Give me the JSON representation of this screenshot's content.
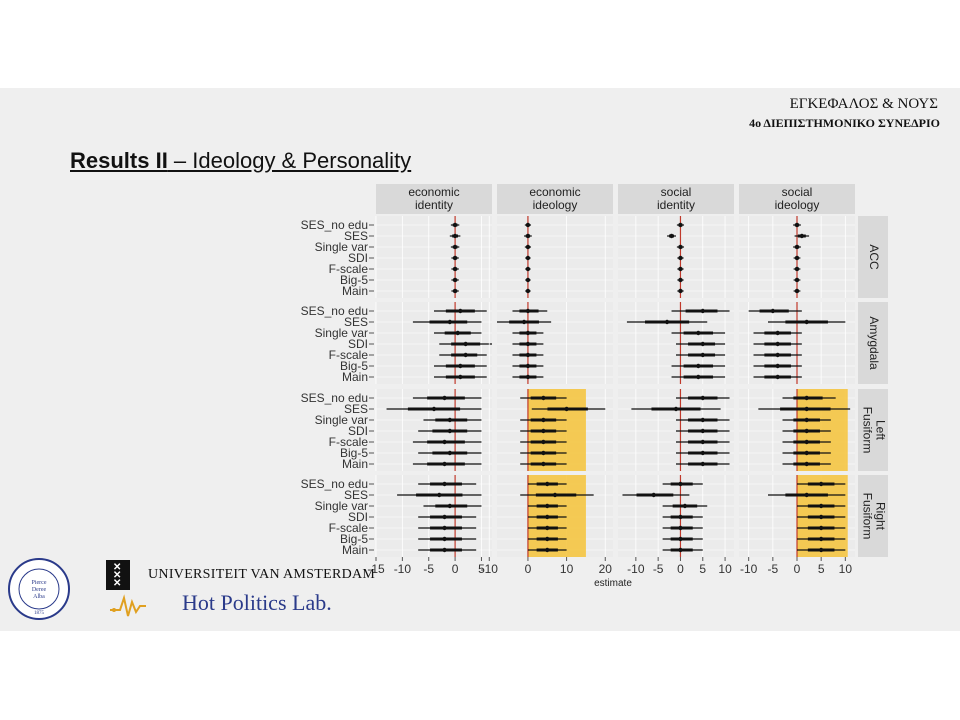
{
  "slide": {
    "conf_title": "ΕΓΚΕΦΑΛΟΣ & ΝΟΥΣ",
    "conf_subtitle": "4ο ΔΙΕΠΙΣΤΗΜΟΝΙΚΟ ΣΥΝΕΔΡΙΟ",
    "title_bold": "Results II",
    "title_rest": " – Ideology & Personality",
    "logos": {
      "uva": "UNIVERSITEIT VAN AMSTERDAM",
      "hpl": "Hot Politics Lab.",
      "seal_text": "THE AMERICAN COLLEGE OF GREECE",
      "seal_inner": [
        "Pierce",
        "Deree",
        "Alba"
      ],
      "seal_year": "1875"
    }
  },
  "colors": {
    "highlight": "#f5c542",
    "zero_line": "#c0392b",
    "panel_bg": "#ebebeb",
    "strip_bg": "#d9d9d9",
    "point": "#111111"
  },
  "chart_data": {
    "type": "forest",
    "xlabel": "estimate",
    "columns": [
      "economic\nidentity",
      "economic\nideology",
      "social\nidentity",
      "social\nideology"
    ],
    "rows": [
      "ACC",
      "Amygdala",
      "Fusiform\nLeft",
      "Fusiform\nRight"
    ],
    "models": [
      "SES_no edu",
      "SES",
      "Single var",
      "SDI",
      "F-scale",
      "Big-5",
      "Main"
    ],
    "column_xlim": [
      [
        -15,
        7
      ],
      [
        -8,
        22
      ],
      [
        -14,
        12
      ],
      [
        -12,
        12
      ]
    ],
    "column_ticks": [
      [
        -15,
        -10,
        -5,
        0,
        5
      ],
      [
        -10,
        0,
        10,
        20
      ],
      [
        -10,
        -5,
        0,
        5,
        10
      ],
      [
        -10,
        -5,
        0,
        5,
        10
      ]
    ],
    "highlight_cells": [
      [
        2,
        1
      ],
      [
        3,
        1
      ],
      [
        2,
        3
      ],
      [
        3,
        3
      ]
    ],
    "cells": [
      [
        [
          [
            0,
            -0.8,
            0.8
          ],
          [
            0,
            -1,
            1
          ],
          [
            0,
            -0.8,
            0.8
          ],
          [
            0,
            -0.7,
            0.7
          ],
          [
            0,
            -0.7,
            0.7
          ],
          [
            0,
            -0.7,
            0.7
          ],
          [
            0,
            -0.7,
            0.7
          ]
        ],
        [
          [
            0,
            -0.8,
            0.8
          ],
          [
            0,
            -1,
            1
          ],
          [
            0,
            -0.8,
            0.8
          ],
          [
            0,
            -0.7,
            0.7
          ],
          [
            0,
            -0.7,
            0.7
          ],
          [
            0,
            -0.7,
            0.7
          ],
          [
            0,
            -0.7,
            0.7
          ]
        ],
        [
          [
            0,
            -0.8,
            0.8
          ],
          [
            -2,
            -3,
            -1
          ],
          [
            0,
            -0.8,
            0.8
          ],
          [
            0,
            -0.7,
            0.7
          ],
          [
            0,
            -0.7,
            0.7
          ],
          [
            0,
            -0.7,
            0.7
          ],
          [
            0,
            -0.7,
            0.7
          ]
        ],
        [
          [
            0,
            -0.8,
            0.8
          ],
          [
            1,
            -0.5,
            2.5
          ],
          [
            0,
            -0.8,
            0.8
          ],
          [
            0,
            -0.7,
            0.7
          ],
          [
            0,
            -0.7,
            0.7
          ],
          [
            0,
            -0.7,
            0.7
          ],
          [
            0,
            -0.7,
            0.7
          ]
        ]
      ],
      [
        [
          [
            1,
            -4,
            6
          ],
          [
            -1,
            -8,
            5
          ],
          [
            0.5,
            -4,
            5
          ],
          [
            2,
            -3,
            7
          ],
          [
            2,
            -3,
            6
          ],
          [
            1,
            -4,
            6
          ],
          [
            1,
            -4,
            6
          ]
        ],
        [
          [
            0,
            -4,
            5
          ],
          [
            -1,
            -8,
            6
          ],
          [
            0,
            -4,
            4
          ],
          [
            0,
            -4,
            4
          ],
          [
            0,
            -4,
            4
          ],
          [
            0,
            -4,
            4
          ],
          [
            0,
            -4,
            4
          ]
        ],
        [
          [
            5,
            -2,
            11
          ],
          [
            -3,
            -12,
            6
          ],
          [
            4,
            -2,
            10
          ],
          [
            5,
            -1,
            10
          ],
          [
            5,
            -1,
            10
          ],
          [
            4,
            -2,
            10
          ],
          [
            4,
            -2,
            10
          ]
        ],
        [
          [
            -5,
            -10,
            1
          ],
          [
            2,
            -6,
            10
          ],
          [
            -4,
            -9,
            1
          ],
          [
            -4,
            -9,
            1
          ],
          [
            -4,
            -9,
            1
          ],
          [
            -4,
            -9,
            1
          ],
          [
            -4,
            -9,
            1
          ]
        ]
      ],
      [
        [
          [
            -2,
            -8,
            5
          ],
          [
            -4,
            -13,
            5
          ],
          [
            -1,
            -6,
            5
          ],
          [
            -1,
            -7,
            5
          ],
          [
            -2,
            -8,
            5
          ],
          [
            -1,
            -7,
            5
          ],
          [
            -2,
            -8,
            5
          ]
        ],
        [
          [
            4,
            -2,
            10
          ],
          [
            10,
            1,
            20
          ],
          [
            4,
            -2,
            10
          ],
          [
            4,
            -2,
            10
          ],
          [
            4,
            -2,
            10
          ],
          [
            4,
            -2,
            10
          ],
          [
            4,
            -2,
            10
          ]
        ],
        [
          [
            5,
            -1,
            11
          ],
          [
            -1,
            -11,
            9
          ],
          [
            5,
            -1,
            11
          ],
          [
            5,
            -1,
            11
          ],
          [
            5,
            -1,
            11
          ],
          [
            5,
            -1,
            11
          ],
          [
            5,
            -1,
            11
          ]
        ],
        [
          [
            2,
            -3,
            8
          ],
          [
            2,
            -8,
            11
          ],
          [
            2,
            -3,
            7
          ],
          [
            2,
            -3,
            7
          ],
          [
            2,
            -3,
            7
          ],
          [
            2,
            -3,
            7
          ],
          [
            2,
            -3,
            7
          ]
        ]
      ],
      [
        [
          [
            -2,
            -7,
            4
          ],
          [
            -3,
            -11,
            5
          ],
          [
            -1,
            -6,
            5
          ],
          [
            -2,
            -7,
            4
          ],
          [
            -2,
            -7,
            4
          ],
          [
            -2,
            -7,
            4
          ],
          [
            -2,
            -7,
            4
          ]
        ],
        [
          [
            5,
            0,
            10
          ],
          [
            7,
            -2,
            17
          ],
          [
            5,
            0,
            10
          ],
          [
            5,
            0,
            10
          ],
          [
            5,
            0,
            10
          ],
          [
            5,
            0,
            10
          ],
          [
            5,
            0,
            10
          ]
        ],
        [
          [
            0,
            -4,
            5
          ],
          [
            -6,
            -13,
            2
          ],
          [
            1,
            -4,
            6
          ],
          [
            0,
            -4,
            5
          ],
          [
            0,
            -4,
            5
          ],
          [
            0,
            -4,
            5
          ],
          [
            0,
            -4,
            5
          ]
        ],
        [
          [
            5,
            0,
            10
          ],
          [
            2,
            -6,
            10
          ],
          [
            5,
            0,
            10
          ],
          [
            5,
            0,
            10
          ],
          [
            5,
            0,
            10
          ],
          [
            5,
            0,
            10
          ],
          [
            5,
            0,
            10
          ]
        ]
      ]
    ]
  }
}
